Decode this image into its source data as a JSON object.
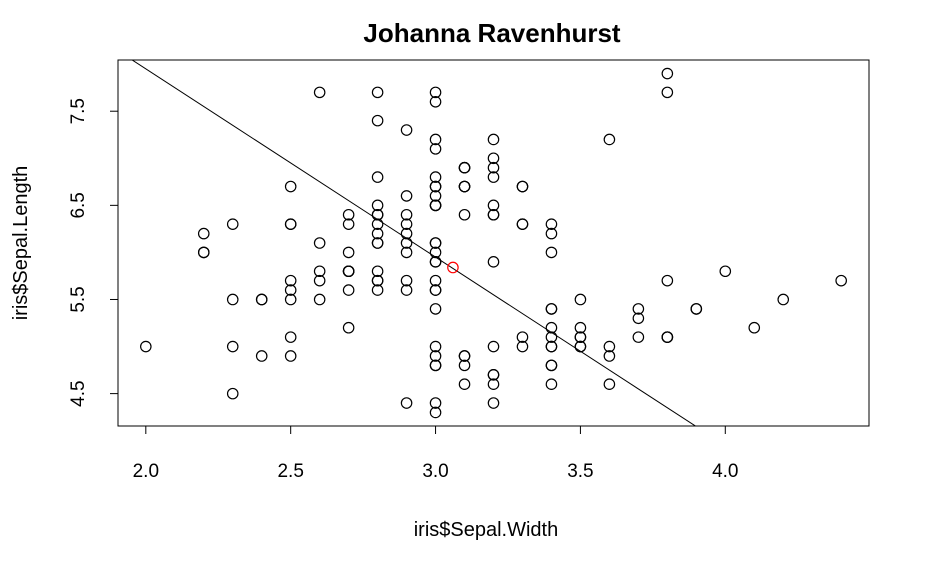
{
  "chart_data": {
    "type": "scatter",
    "title": "Johanna Ravenhurst",
    "xlabel": "iris$Sepal.Width",
    "ylabel": "iris$Sepal.Length",
    "xlim": [
      1.904,
      4.496
    ],
    "ylim": [
      4.156,
      8.044
    ],
    "xticks": [
      2.0,
      2.5,
      3.0,
      3.5,
      4.0
    ],
    "xtick_labels": [
      "2.0",
      "2.5",
      "3.0",
      "3.5",
      "4.0"
    ],
    "yticks": [
      4.5,
      5.5,
      6.5,
      7.5
    ],
    "ytick_labels": [
      "4.5",
      "5.5",
      "6.5",
      "7.5"
    ],
    "grid": false,
    "point_color": "#000000",
    "highlight_color": "#ff0000",
    "line_color": "#000000",
    "points": {
      "x": [
        3.5,
        3.0,
        3.2,
        3.1,
        3.6,
        3.9,
        3.4,
        3.4,
        2.9,
        3.1,
        3.7,
        3.4,
        3.0,
        3.0,
        4.0,
        4.4,
        3.9,
        3.5,
        3.8,
        3.8,
        3.4,
        3.7,
        3.6,
        3.3,
        3.4,
        3.0,
        3.4,
        3.5,
        3.4,
        3.2,
        3.1,
        3.4,
        4.1,
        4.2,
        3.1,
        3.2,
        3.5,
        3.6,
        3.0,
        3.4,
        3.5,
        2.3,
        3.2,
        3.5,
        3.8,
        3.0,
        3.8,
        3.2,
        3.7,
        3.3,
        3.2,
        3.2,
        3.1,
        2.3,
        2.8,
        2.8,
        3.3,
        2.4,
        2.9,
        2.7,
        2.0,
        3.0,
        2.2,
        2.9,
        2.9,
        3.1,
        3.0,
        2.7,
        2.2,
        2.5,
        3.2,
        2.8,
        2.5,
        2.8,
        2.9,
        3.0,
        2.8,
        3.0,
        2.9,
        2.6,
        2.4,
        2.4,
        2.7,
        2.7,
        3.0,
        3.4,
        3.1,
        2.3,
        3.0,
        2.5,
        2.6,
        3.0,
        2.6,
        2.3,
        2.7,
        3.0,
        2.9,
        2.9,
        2.5,
        2.8,
        3.3,
        2.7,
        3.0,
        2.9,
        3.0,
        3.0,
        2.5,
        2.9,
        2.5,
        3.6,
        3.2,
        2.7,
        3.0,
        2.5,
        2.8,
        3.2,
        3.0,
        3.8,
        2.6,
        2.2,
        3.2,
        2.8,
        2.8,
        2.7,
        3.3,
        3.2,
        2.8,
        3.0,
        2.8,
        3.0,
        2.8,
        3.8,
        2.8,
        2.8,
        2.6,
        3.0,
        3.4,
        3.1,
        3.0,
        3.1,
        3.1,
        3.1,
        2.7,
        3.2,
        3.3,
        3.0,
        2.5,
        3.0,
        3.4,
        3.0
      ],
      "y": [
        5.1,
        4.9,
        4.7,
        4.6,
        5.0,
        5.4,
        4.6,
        5.0,
        4.4,
        4.9,
        5.4,
        4.8,
        4.8,
        4.3,
        5.8,
        5.7,
        5.4,
        5.1,
        5.7,
        5.1,
        5.4,
        5.1,
        4.6,
        5.1,
        4.8,
        5.0,
        5.0,
        5.2,
        5.2,
        4.7,
        4.8,
        5.4,
        5.2,
        5.5,
        4.9,
        5.0,
        5.5,
        4.9,
        4.4,
        5.1,
        5.0,
        4.5,
        4.4,
        5.0,
        5.1,
        4.8,
        5.1,
        4.6,
        5.3,
        5.0,
        7.0,
        6.4,
        6.9,
        5.5,
        6.5,
        5.7,
        6.3,
        4.9,
        6.6,
        5.2,
        5.0,
        5.9,
        6.0,
        6.1,
        5.6,
        6.7,
        5.6,
        5.8,
        6.2,
        5.6,
        5.9,
        6.1,
        6.3,
        6.1,
        6.4,
        6.6,
        6.8,
        6.7,
        6.0,
        5.7,
        5.5,
        5.5,
        5.8,
        6.0,
        5.4,
        6.0,
        6.7,
        6.3,
        5.6,
        5.5,
        5.5,
        6.1,
        5.8,
        5.0,
        5.6,
        5.7,
        5.7,
        6.2,
        5.1,
        5.7,
        6.3,
        5.8,
        7.1,
        6.3,
        6.5,
        7.6,
        4.9,
        7.3,
        6.7,
        7.2,
        6.5,
        6.4,
        6.8,
        5.7,
        5.8,
        6.4,
        6.5,
        7.7,
        7.7,
        6.0,
        6.9,
        5.6,
        7.7,
        6.3,
        6.7,
        7.2,
        6.2,
        6.1,
        6.4,
        7.2,
        7.4,
        7.9,
        6.4,
        6.3,
        6.1,
        7.7,
        6.3,
        6.4,
        6.0,
        6.9,
        6.7,
        6.9,
        5.8,
        6.8,
        6.7,
        6.7,
        6.3,
        6.5,
        6.2,
        5.9
      ]
    },
    "highlight_point": {
      "x": 3.06,
      "y": 5.84
    },
    "regression_line": {
      "intercept": 11.95,
      "slope": -2.0
    }
  }
}
